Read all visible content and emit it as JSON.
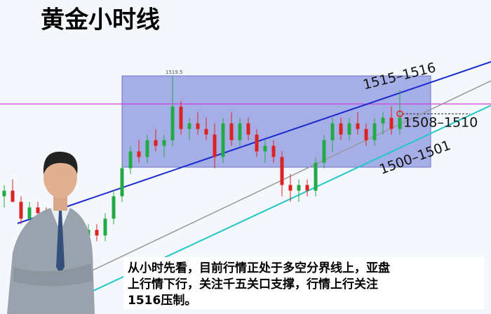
{
  "chart_data": {
    "type": "candlestick",
    "title": "黄金小时线",
    "open": [
      1498,
      1499,
      1497,
      1494,
      1496,
      1495,
      1493,
      1494,
      1492,
      1493,
      1491,
      1492,
      1491,
      1494,
      1498,
      1503,
      1506,
      1505,
      1508,
      1507,
      1508,
      1514,
      1510,
      1511,
      1510,
      1509,
      1505,
      1511,
      1508,
      1511,
      1509,
      1506,
      1507,
      1505,
      1500,
      1499,
      1500,
      1499,
      1504,
      1508,
      1511,
      1509,
      1511,
      1510,
      1508,
      1511,
      1512,
      1510
    ],
    "high": [
      1500,
      1501,
      1498,
      1497,
      1497,
      1496,
      1495,
      1495,
      1494,
      1494,
      1493,
      1493,
      1495,
      1499,
      1504,
      1507,
      1508,
      1509,
      1510,
      1509,
      1519.5,
      1515,
      1512,
      1513,
      1512,
      1511,
      1512,
      1513,
      1512,
      1512,
      1510,
      1508,
      1508,
      1506,
      1502,
      1501,
      1501,
      1505,
      1509,
      1512,
      1512,
      1512,
      1513,
      1511,
      1512,
      1513,
      1514,
      1517
    ],
    "low": [
      1496,
      1497,
      1493,
      1493,
      1494,
      1492,
      1492,
      1491,
      1491,
      1490,
      1490,
      1490,
      1490,
      1493,
      1497,
      1502,
      1504,
      1504,
      1506,
      1505,
      1507,
      1509,
      1508,
      1509,
      1508,
      1503,
      1504,
      1507,
      1507,
      1508,
      1505,
      1504,
      1504,
      1498,
      1497,
      1497,
      1498,
      1498,
      1503,
      1506,
      1508,
      1508,
      1509,
      1507,
      1507,
      1509,
      1509,
      1509
    ],
    "close": [
      1499,
      1497,
      1494,
      1496,
      1495,
      1493,
      1494,
      1492,
      1493,
      1491,
      1492,
      1491,
      1494,
      1498,
      1503,
      1506,
      1505,
      1508,
      1507,
      1508,
      1514,
      1510,
      1511,
      1510,
      1509,
      1505,
      1511,
      1508,
      1511,
      1509,
      1506,
      1507,
      1505,
      1500,
      1499,
      1500,
      1499,
      1504,
      1508,
      1511,
      1509,
      1511,
      1510,
      1508,
      1511,
      1512,
      1510,
      1512
    ],
    "up_color": "#22aa44",
    "down_color": "#dd2222",
    "ylim": [
      1477,
      1533
    ],
    "annotations": [
      "1519.5",
      "1515–1516",
      "1508–1510",
      "1500–1501"
    ],
    "comment": [
      "从小时先看，目前行情正处于多空分界线上，亚盘",
      "上行情下行，关注千五关口支撑，行情上行关注",
      "1516压制。"
    ]
  }
}
